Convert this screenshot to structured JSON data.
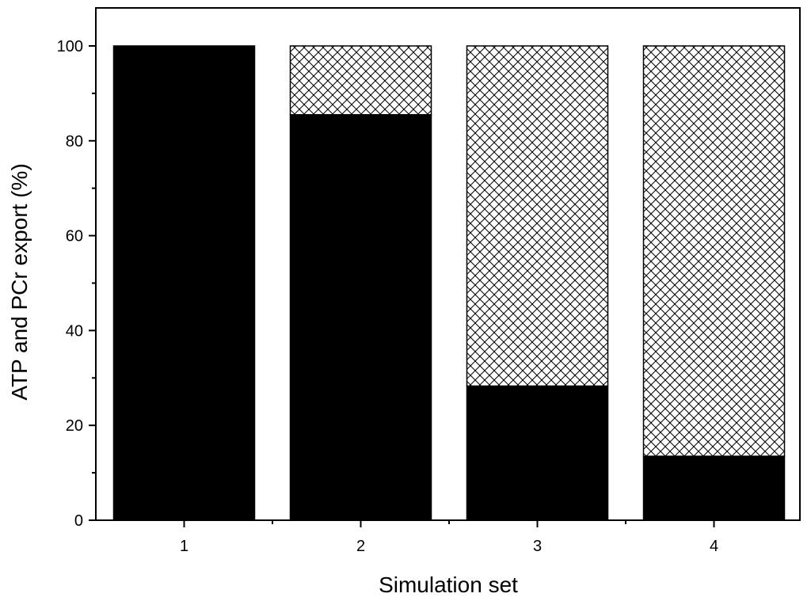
{
  "chart_data": {
    "type": "bar",
    "stacked": true,
    "title": "",
    "xlabel": "Simulation set",
    "ylabel": "ATP and PCr export (%)",
    "categories": [
      "1",
      "2",
      "3",
      "4"
    ],
    "ylim": [
      0,
      105
    ],
    "yticks": [
      0,
      20,
      40,
      60,
      80,
      100
    ],
    "grid": false,
    "legend": "none",
    "series": [
      {
        "fill": "solid",
        "color": "#000000",
        "values": [
          100,
          85.5,
          28.3,
          13.5
        ]
      },
      {
        "fill": "crosshatch",
        "color": "#000000",
        "values": [
          0,
          14.5,
          71.7,
          86.5
        ]
      }
    ]
  }
}
